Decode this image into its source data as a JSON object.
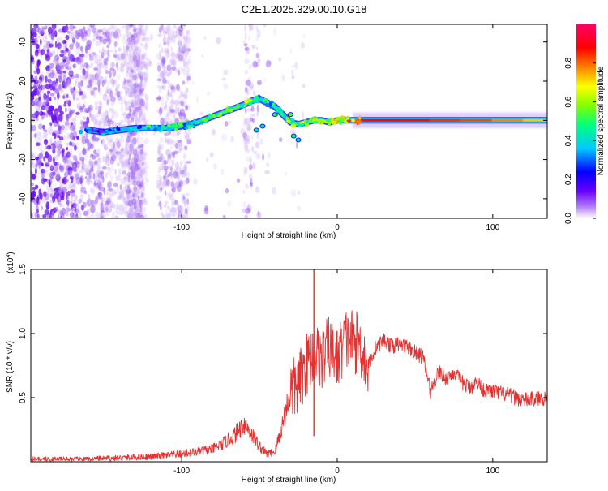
{
  "title": "C2E1.2025.329.00.10.G18",
  "chart_data": [
    {
      "type": "heatmap",
      "title": "C2E1.2025.329.00.10.G18",
      "xlabel": "Height of straight line (km)",
      "ylabel": "Frequency (Hz)",
      "xlim": [
        -197,
        135
      ],
      "ylim": [
        -50,
        49
      ],
      "x_ticks": [
        -100,
        0,
        100
      ],
      "x_tick_labels": [
        "-100",
        "0",
        "100"
      ],
      "y_ticks": [
        -40,
        -20,
        0,
        20,
        40
      ],
      "y_tick_labels": [
        "-40",
        "-20",
        "0",
        "20",
        "40"
      ],
      "grid": false,
      "colorbar": {
        "label": "Normalized spectral amplitude",
        "range": [
          0,
          1
        ],
        "ticks": [
          0.0,
          0.2,
          0.4,
          0.6,
          0.8
        ],
        "tick_labels": [
          "0.0",
          "0.2",
          "0.4",
          "0.6",
          "0.8"
        ],
        "colormap": [
          "#ffffff",
          "#7a00ff",
          "#0000ff",
          "#00c8ff",
          "#00ff80",
          "#80ff00",
          "#ffff00",
          "#ff8000",
          "#ff0000",
          "#ff0066"
        ]
      },
      "ridge": {
        "x": [
          -160,
          -150,
          -140,
          -130,
          -120,
          -110,
          -100,
          -90,
          -80,
          -70,
          -60,
          -55,
          -50,
          -45,
          -40,
          -35,
          -30,
          -25,
          -20,
          -15,
          -10,
          -5,
          0,
          5,
          10,
          15,
          20,
          40,
          60,
          80,
          100,
          120,
          135
        ],
        "y": [
          -5,
          -6,
          -5,
          -4,
          -4,
          -4,
          -3,
          -1,
          2,
          5,
          8,
          10,
          11,
          9,
          7,
          3,
          -1,
          -2,
          -1,
          0,
          0,
          -1,
          0,
          0,
          0,
          0,
          0,
          0,
          0,
          0,
          0,
          0,
          0
        ],
        "amplitude": [
          0.3,
          0.25,
          0.35,
          0.35,
          0.4,
          0.45,
          0.4,
          0.45,
          0.5,
          0.55,
          0.5,
          0.55,
          0.4,
          0.4,
          0.45,
          0.45,
          0.5,
          0.55,
          0.5,
          0.6,
          0.6,
          0.65,
          0.6,
          0.7,
          0.75,
          0.85,
          0.9,
          0.9,
          0.85,
          0.85,
          0.8,
          0.75,
          0.7
        ]
      }
    },
    {
      "type": "line",
      "xlabel": "Height of straight line (km)",
      "ylabel": "SNR (10 * v/v)",
      "y_multiplier_label": "(x10",
      "y_multiplier_exp": "4",
      "y_multiplier_close": ")",
      "xlim": [
        -197,
        135
      ],
      "ylim": [
        0,
        1.5
      ],
      "x_ticks": [
        -100,
        0,
        100
      ],
      "x_tick_labels": [
        "-100",
        "0",
        "100"
      ],
      "y_ticks": [
        0.5,
        1.0,
        1.5
      ],
      "y_tick_labels": [
        "0.5",
        "1.0",
        "1.5"
      ],
      "grid": false,
      "series": [
        {
          "color": "#e83030",
          "x": [
            -197,
            -180,
            -160,
            -140,
            -120,
            -100,
            -90,
            -80,
            -75,
            -70,
            -65,
            -60,
            -55,
            -50,
            -45,
            -40,
            -35,
            -30,
            -25,
            -20,
            -15,
            -10,
            -5,
            0,
            5,
            10,
            15,
            20,
            25,
            30,
            35,
            40,
            45,
            50,
            55,
            60,
            65,
            70,
            75,
            80,
            85,
            90,
            95,
            100,
            110,
            120,
            135
          ],
          "y": [
            0.02,
            0.02,
            0.02,
            0.03,
            0.04,
            0.06,
            0.08,
            0.1,
            0.13,
            0.17,
            0.22,
            0.3,
            0.22,
            0.12,
            0.06,
            0.08,
            0.3,
            0.55,
            0.6,
            0.75,
            0.85,
            0.8,
            0.9,
            0.8,
            0.95,
            0.95,
            0.9,
            0.75,
            0.9,
            0.95,
            0.9,
            0.92,
            0.9,
            0.85,
            0.82,
            0.55,
            0.7,
            0.65,
            0.7,
            0.62,
            0.58,
            0.62,
            0.55,
            0.55,
            0.52,
            0.48,
            0.5
          ]
        }
      ],
      "annotation": {
        "x": -15,
        "y": 1.5,
        "text": ""
      }
    }
  ]
}
